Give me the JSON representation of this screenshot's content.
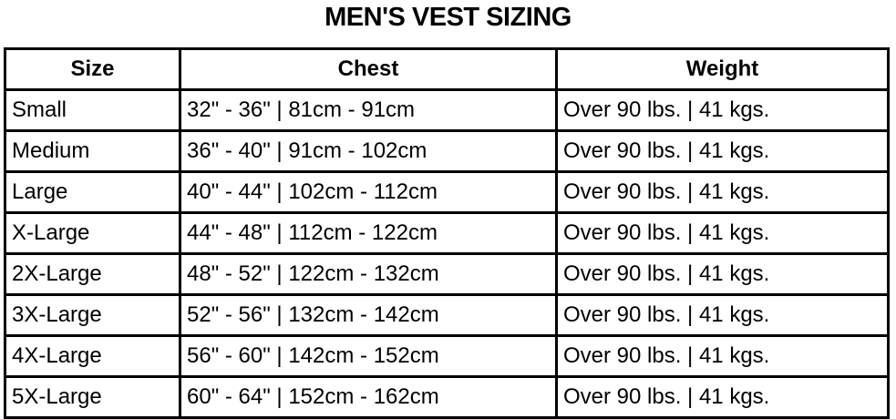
{
  "title": "MEN'S VEST SIZING",
  "table": {
    "headers": [
      "Size",
      "Chest",
      "Weight"
    ],
    "rows": [
      [
        "Small",
        "32\" - 36\" | 81cm - 91cm",
        "Over 90 lbs. | 41 kgs."
      ],
      [
        "Medium",
        "36\" - 40\" | 91cm - 102cm",
        "Over 90 lbs. | 41 kgs."
      ],
      [
        "Large",
        "40\" - 44\" | 102cm - 112cm",
        "Over 90 lbs. | 41 kgs."
      ],
      [
        "X-Large",
        "44\" - 48\" | 112cm - 122cm",
        "Over 90 lbs. | 41 kgs."
      ],
      [
        "2X-Large",
        "48\" - 52\" | 122cm - 132cm",
        "Over 90 lbs. | 41 kgs."
      ],
      [
        "3X-Large",
        "52\" - 56\" | 132cm - 142cm",
        "Over 90 lbs. | 41 kgs."
      ],
      [
        "4X-Large",
        "56\" - 60\" | 142cm - 152cm",
        "Over 90 lbs. | 41 kgs."
      ],
      [
        "5X-Large",
        "60\" - 64\" | 152cm - 162cm",
        "Over 90 lbs. | 41 kgs."
      ]
    ]
  }
}
